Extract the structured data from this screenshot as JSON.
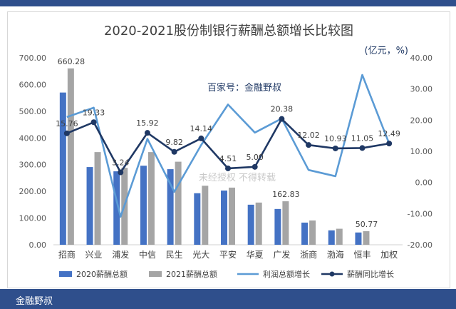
{
  "footer": {
    "text": "金融野叔"
  },
  "watermarks": {
    "source": "百家号：金融野叔",
    "notice": "未经授权 不得转载"
  },
  "colors": {
    "bar2020": "#4472c4",
    "bar2021": "#a5a5a5",
    "profitLine": "#5b9bd5",
    "compLine": "#1f3864",
    "frame": "#2f4f8c"
  },
  "chart_data": {
    "type": "bar",
    "title": "2020-2021股份制银行薪酬总额增长比较图",
    "unit_label": "(亿元，%)",
    "categories": [
      "招商",
      "兴业",
      "浦发",
      "中信",
      "民生",
      "光大",
      "平安",
      "华夏",
      "广发",
      "浙商",
      "渤海",
      "恒丰",
      "加权"
    ],
    "ylim_left": [
      0,
      700
    ],
    "ylim_right": [
      -20,
      40
    ],
    "left_ticks": [
      "0.00",
      "100.00",
      "200.00",
      "300.00",
      "400.00",
      "500.00",
      "600.00",
      "700.00"
    ],
    "right_ticks": [
      "-20.00",
      "-10.00",
      "0.00",
      "10.00",
      "20.00",
      "30.00",
      "40.00"
    ],
    "series": [
      {
        "name": "2020薪酬总额",
        "kind": "bar",
        "values": [
          570,
          291,
          275,
          296,
          283,
          193,
          203,
          150,
          134,
          83,
          54,
          46,
          null
        ]
      },
      {
        "name": "2021薪酬总额",
        "kind": "bar",
        "values": [
          660.28,
          347,
          288,
          347,
          311,
          221,
          214,
          158,
          162.83,
          91,
          60,
          50.77,
          null
        ]
      },
      {
        "name": "利润总额增长",
        "kind": "line",
        "values": [
          21,
          24,
          -11,
          14,
          -3,
          12,
          25,
          16,
          20.5,
          4,
          2,
          34.5,
          12.5
        ]
      },
      {
        "name": "薪酬同比增长",
        "kind": "line",
        "values": [
          15.76,
          19.33,
          3.24,
          15.92,
          9.82,
          14.14,
          4.51,
          5.0,
          20.38,
          12.02,
          10.93,
          11.05,
          12.49
        ]
      }
    ],
    "bar_labels": [
      {
        "series": 1,
        "index": 0,
        "text": "660.28"
      },
      {
        "series": 1,
        "index": 8,
        "text": "162.83"
      },
      {
        "series": 1,
        "index": 11,
        "text": "50.77"
      }
    ],
    "line_labels": [
      "15.76",
      "19.33",
      "3.24",
      "15.92",
      "9.82",
      "14.14",
      "4.51",
      "5.00",
      "20.38",
      "12.02",
      "10.93",
      "11.05",
      "12.49"
    ],
    "legend_position": "bottom",
    "grid": false
  }
}
